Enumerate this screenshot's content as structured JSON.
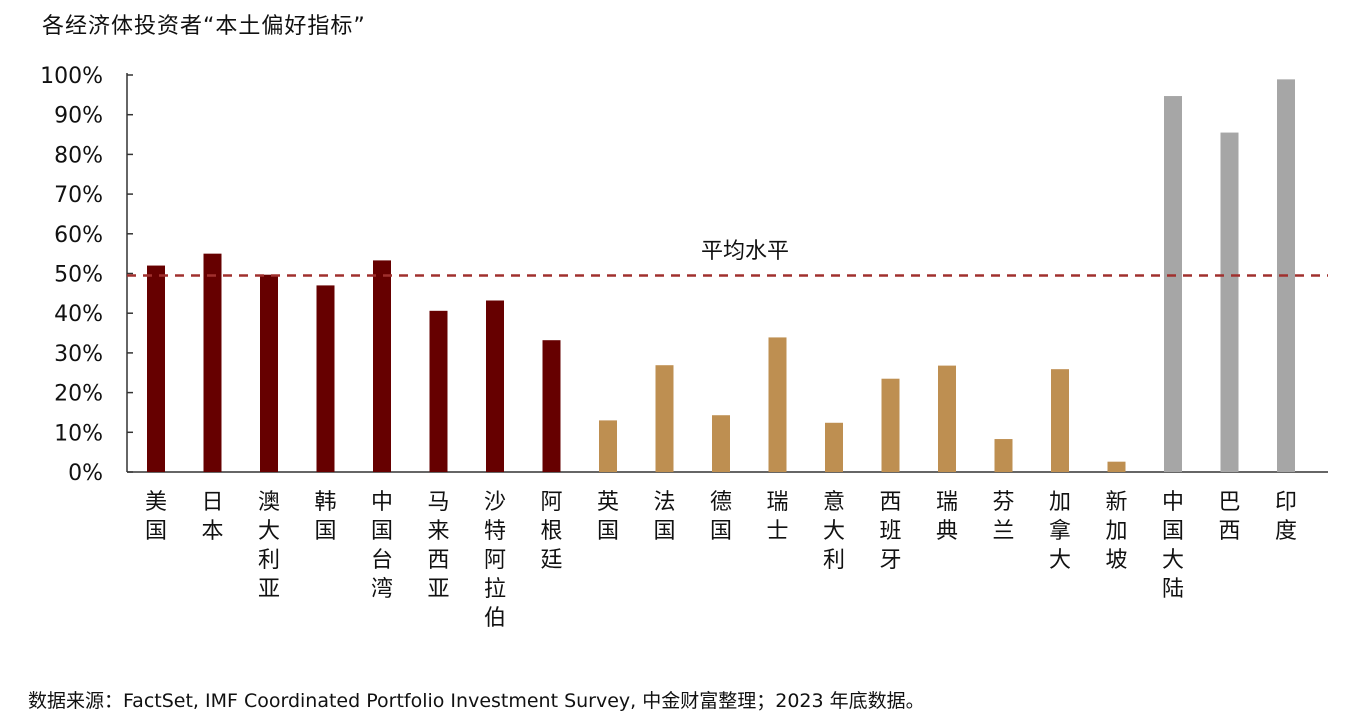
{
  "title": "各经济体投资者“本土偏好指标”",
  "source": "数据来源：FactSet, IMF Coordinated Portfolio Investment Survey, 中金财富整理；2023 年底数据。",
  "colors": {
    "developed_asia_etc": "#660000",
    "europe_etc": "#BE8F51",
    "emerging_large": "#A6A6A6",
    "average_line": "#A0302E"
  },
  "chart_data": {
    "type": "bar",
    "title": "各经济体投资者“本土偏好指标”",
    "xlabel": "",
    "ylabel": "",
    "ylim": [
      0,
      100
    ],
    "yticks": [
      "0%",
      "10%",
      "20%",
      "30%",
      "40%",
      "50%",
      "60%",
      "70%",
      "80%",
      "90%",
      "100%"
    ],
    "grid": false,
    "categories": [
      "美国",
      "日本",
      "澳大利亚",
      "韩国",
      "中国台湾",
      "马来西亚",
      "沙特阿拉伯",
      "阿根廷",
      "英国",
      "法国",
      "德国",
      "瑞士",
      "意大利",
      "西班牙",
      "瑞典",
      "芬兰",
      "加拿大",
      "新加坡",
      "中国大陆",
      "巴西",
      "印度"
    ],
    "values": [
      52,
      55,
      49.7,
      47,
      53.3,
      40.6,
      43.2,
      33.2,
      13,
      26.9,
      14.3,
      33.9,
      12.4,
      23.5,
      26.8,
      8.3,
      25.9,
      2.6,
      94.7,
      85.5,
      98.9
    ],
    "bar_colors": [
      "#660000",
      "#660000",
      "#660000",
      "#660000",
      "#660000",
      "#660000",
      "#660000",
      "#660000",
      "#BE8F51",
      "#BE8F51",
      "#BE8F51",
      "#BE8F51",
      "#BE8F51",
      "#BE8F51",
      "#BE8F51",
      "#BE8F51",
      "#BE8F51",
      "#BE8F51",
      "#A6A6A6",
      "#A6A6A6",
      "#A6A6A6"
    ],
    "reference_line": {
      "label": "平均水平",
      "value": 49.5,
      "style": "dashed"
    }
  }
}
